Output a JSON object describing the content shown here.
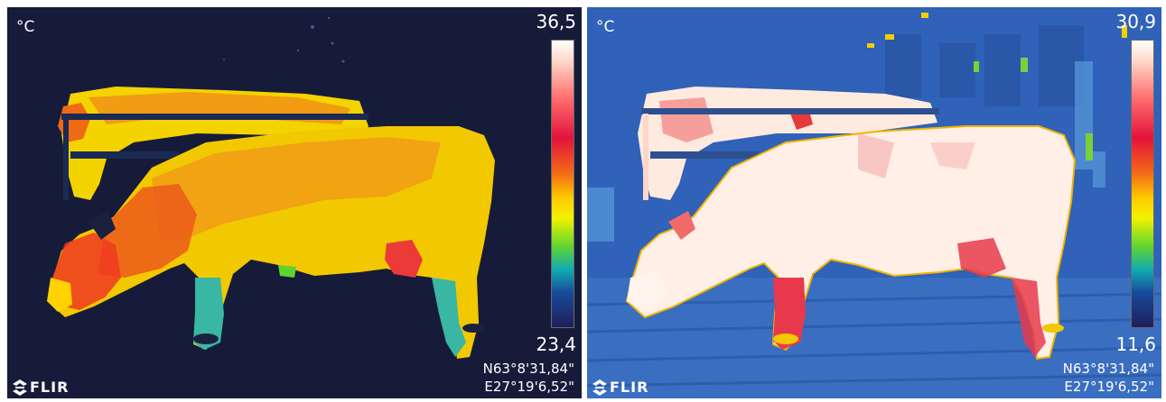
{
  "left_image": {
    "unit": "°C",
    "scale_max": "36,5",
    "scale_min": "23,4",
    "latitude": "N63°8'31,84\"",
    "longitude": "E27°19'6,52\"",
    "brand": "FLIR"
  },
  "right_image": {
    "unit": "°C",
    "scale_max": "30,9",
    "scale_min": "11,6",
    "latitude": "N63°8'31,84\"",
    "longitude": "E27°19'6,52\"",
    "brand": "FLIR"
  },
  "colors": {
    "left_background": "#171b3a",
    "right_background": "#2e5fb4",
    "palette": [
      "#ffffff",
      "#ff6f6f",
      "#e3133c",
      "#f36818",
      "#ffcb00",
      "#5ed431",
      "#10aab0",
      "#184a9c",
      "#1e1f5a"
    ]
  }
}
